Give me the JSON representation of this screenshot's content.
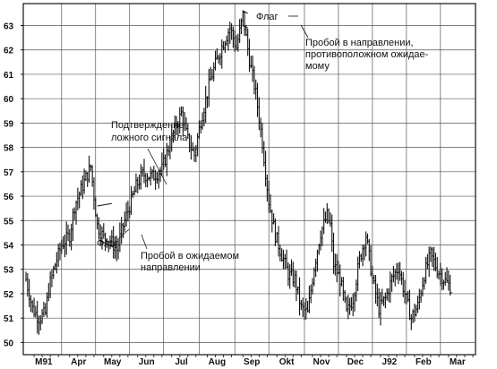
{
  "chart_data": {
    "type": "ohlc",
    "title": "",
    "xlabel": "",
    "ylabel": "",
    "ylim": [
      49.5,
      63.9
    ],
    "yticks": [
      50,
      51,
      52,
      53,
      54,
      55,
      56,
      57,
      58,
      59,
      60,
      61,
      62,
      63
    ],
    "yticklabels": [
      "50",
      "51",
      "52",
      "53",
      "54",
      "55",
      "56",
      "57",
      "58",
      "59",
      "60",
      "61",
      "62",
      "63"
    ],
    "grid": true,
    "ink_color": "#111111",
    "grid_color": "#555555",
    "months": [
      {
        "label": "M91",
        "start": 0
      },
      {
        "label": "Apr",
        "start": 22
      },
      {
        "label": "May",
        "start": 43
      },
      {
        "label": "Jun",
        "start": 64
      },
      {
        "label": "Jul",
        "start": 85
      },
      {
        "label": "Aug",
        "start": 107
      },
      {
        "label": "Sep",
        "start": 129
      },
      {
        "label": "Okt",
        "start": 150
      },
      {
        "label": "Nov",
        "start": 172
      },
      {
        "label": "Dec",
        "start": 193
      },
      {
        "label": "J92",
        "start": 214
      },
      {
        "label": "Feb",
        "start": 235
      },
      {
        "label": "Mar",
        "start": 256
      }
    ],
    "trading_days": 277,
    "anchors": [
      [
        0,
        52.6
      ],
      [
        4,
        51.4
      ],
      [
        8,
        51.0
      ],
      [
        12,
        51.2
      ],
      [
        14,
        52.2
      ],
      [
        18,
        53.2
      ],
      [
        22,
        54.0
      ],
      [
        27,
        54.4
      ],
      [
        30,
        55.6
      ],
      [
        36,
        56.6
      ],
      [
        40,
        57.2
      ],
      [
        44,
        54.8
      ],
      [
        48,
        54.3
      ],
      [
        52,
        54.2
      ],
      [
        56,
        53.8
      ],
      [
        60,
        54.8
      ],
      [
        64,
        55.6
      ],
      [
        68,
        56.4
      ],
      [
        72,
        56.9
      ],
      [
        78,
        56.8
      ],
      [
        84,
        57.1
      ],
      [
        90,
        58.4
      ],
      [
        96,
        59.4
      ],
      [
        100,
        58.3
      ],
      [
        104,
        57.7
      ],
      [
        108,
        59.1
      ],
      [
        114,
        60.8
      ],
      [
        118,
        61.6
      ],
      [
        122,
        62.3
      ],
      [
        126,
        62.9
      ],
      [
        130,
        62.1
      ],
      [
        134,
        63.4
      ],
      [
        138,
        61.6
      ],
      [
        142,
        60.2
      ],
      [
        146,
        58.2
      ],
      [
        150,
        55.8
      ],
      [
        154,
        54.4
      ],
      [
        158,
        53.6
      ],
      [
        162,
        52.8
      ],
      [
        166,
        52.6
      ],
      [
        170,
        51.4
      ],
      [
        174,
        51.2
      ],
      [
        178,
        53.1
      ],
      [
        182,
        54.5
      ],
      [
        186,
        55.2
      ],
      [
        188,
        54.8
      ],
      [
        190,
        53.2
      ],
      [
        194,
        52.6
      ],
      [
        198,
        51.2
      ],
      [
        202,
        51.8
      ],
      [
        206,
        53.4
      ],
      [
        210,
        54.4
      ],
      [
        214,
        52.6
      ],
      [
        218,
        51.4
      ],
      [
        222,
        51.8
      ],
      [
        226,
        52.6
      ],
      [
        230,
        53.1
      ],
      [
        234,
        52.0
      ],
      [
        238,
        51.0
      ],
      [
        242,
        51.5
      ],
      [
        246,
        52.8
      ],
      [
        250,
        53.6
      ],
      [
        254,
        53.0
      ],
      [
        258,
        52.6
      ],
      [
        262,
        52.3
      ]
    ],
    "annotations": [
      {
        "text": "Флаг"
      },
      {
        "text": "Пробой в направлении,"
      },
      {
        "text": "противоположном ожидае-"
      },
      {
        "text": "мому"
      },
      {
        "text": "Подтверждение"
      },
      {
        "text": "ложного сигнала"
      },
      {
        "text": "Флаг"
      },
      {
        "text": "Пробой в ожидаемом"
      },
      {
        "text": "направлении"
      }
    ]
  }
}
